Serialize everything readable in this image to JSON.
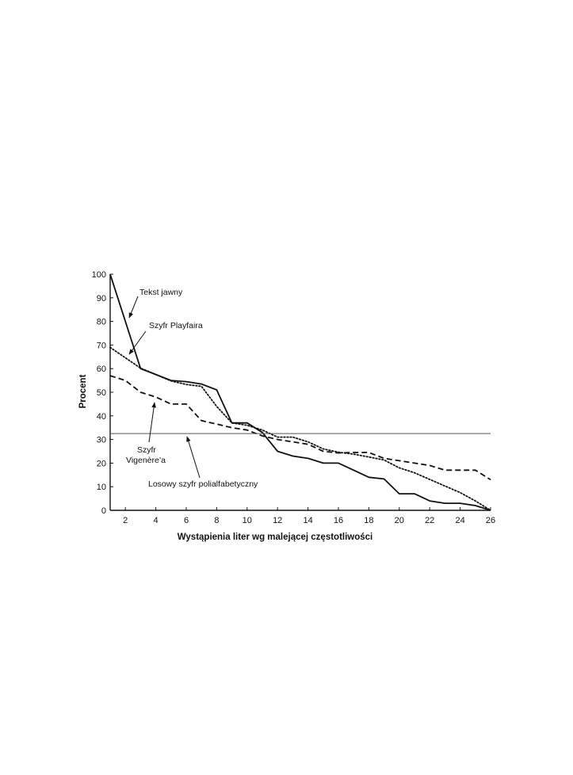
{
  "chart_data": {
    "type": "line",
    "xlabel": "Wystąpienia liter wg malejącej częstotliwości",
    "ylabel": "Procent",
    "xlim": [
      1,
      26
    ],
    "ylim": [
      0,
      100
    ],
    "x_ticks": [
      2,
      4,
      6,
      8,
      10,
      12,
      14,
      16,
      18,
      20,
      22,
      24,
      26
    ],
    "y_ticks": [
      0,
      10,
      20,
      30,
      40,
      50,
      60,
      70,
      80,
      90,
      100
    ],
    "grid": false,
    "legend": "none",
    "x": [
      1,
      2,
      3,
      4,
      5,
      6,
      7,
      8,
      9,
      10,
      11,
      12,
      13,
      14,
      15,
      16,
      17,
      18,
      19,
      20,
      21,
      22,
      23,
      24,
      25,
      26
    ],
    "series": [
      {
        "name": "Tekst jawny",
        "style": "solid",
        "values": [
          100,
          80,
          60,
          57.5,
          55,
          54.5,
          53.5,
          51,
          37,
          37,
          33,
          25,
          23,
          22,
          20,
          20,
          17,
          14,
          13.3,
          7,
          7,
          4,
          3,
          3,
          2,
          0
        ]
      },
      {
        "name": "Szyfr Playfaira",
        "style": "dotted",
        "values": [
          69,
          64.6,
          60.2,
          57.5,
          54.8,
          53.3,
          52.5,
          44,
          37,
          36,
          34,
          31,
          31,
          29,
          26,
          24.6,
          23.8,
          22.6,
          21.3,
          18,
          15.9,
          13.1,
          10.3,
          7.5,
          4,
          0
        ]
      },
      {
        "name": "Szyfr Vigenère’a",
        "style": "dashed",
        "values": [
          57,
          55,
          50,
          48,
          45,
          45,
          38,
          36.5,
          35,
          34,
          31.5,
          30,
          29,
          28,
          25,
          24.3,
          24.5,
          24.5,
          22,
          21,
          20,
          19,
          17,
          17,
          17,
          13
        ]
      },
      {
        "name": "Losowy szyfr polialfabetyczny",
        "style": "thin-solid",
        "values": [
          32.5,
          32.5,
          32.5,
          32.5,
          32.5,
          32.5,
          32.5,
          32.5,
          32.5,
          32.5,
          32.5,
          32.5,
          32.5,
          32.5,
          32.5,
          32.5,
          32.5,
          32.5,
          32.5,
          32.5,
          32.5,
          32.5,
          32.5,
          32.5,
          32.5,
          32.5
        ]
      }
    ],
    "annotations": [
      {
        "text": "Tekst jawny"
      },
      {
        "text": "Szyfr Playfaira"
      },
      {
        "lines": [
          "Szyfr",
          "Vigenère’a"
        ]
      },
      {
        "text": "Losowy szyfr polialfabetyczny"
      }
    ]
  }
}
